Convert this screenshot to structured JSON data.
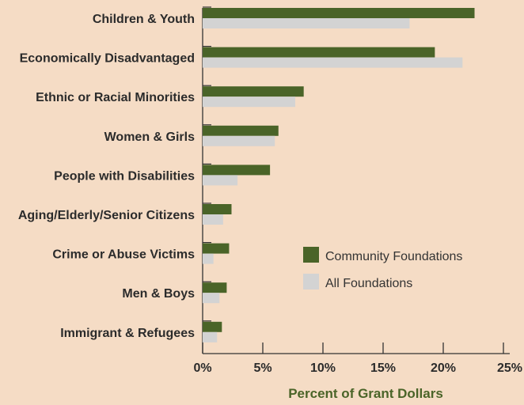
{
  "chart_data": {
    "type": "bar",
    "orientation": "horizontal",
    "categories": [
      "Children & Youth",
      "Economically Disadvantaged",
      "Ethnic or Racial Minorities",
      "Women & Girls",
      "People with Disabilities",
      "Aging/Elderly/Senior Citizens",
      "Crime or Abuse Victims",
      "Men & Boys",
      "Immigrant & Refugees"
    ],
    "series": [
      {
        "name": "Community Foundations",
        "color": "#4a6428",
        "values": [
          22.6,
          19.3,
          8.4,
          6.3,
          5.6,
          2.4,
          2.2,
          2.0,
          1.6
        ]
      },
      {
        "name": "All Foundations",
        "color": "#d3d3d3",
        "values": [
          17.2,
          21.6,
          7.7,
          6.0,
          2.9,
          1.7,
          0.9,
          1.4,
          1.2
        ]
      }
    ],
    "xlabel": "Percent of Grant Dollars",
    "xlabel_color": "#4a6428",
    "xlim": [
      0,
      25
    ],
    "xticks": [
      "0%",
      "5%",
      "10%",
      "15%",
      "20%",
      "25%"
    ],
    "legend_position": "lower-right",
    "grid": false
  }
}
